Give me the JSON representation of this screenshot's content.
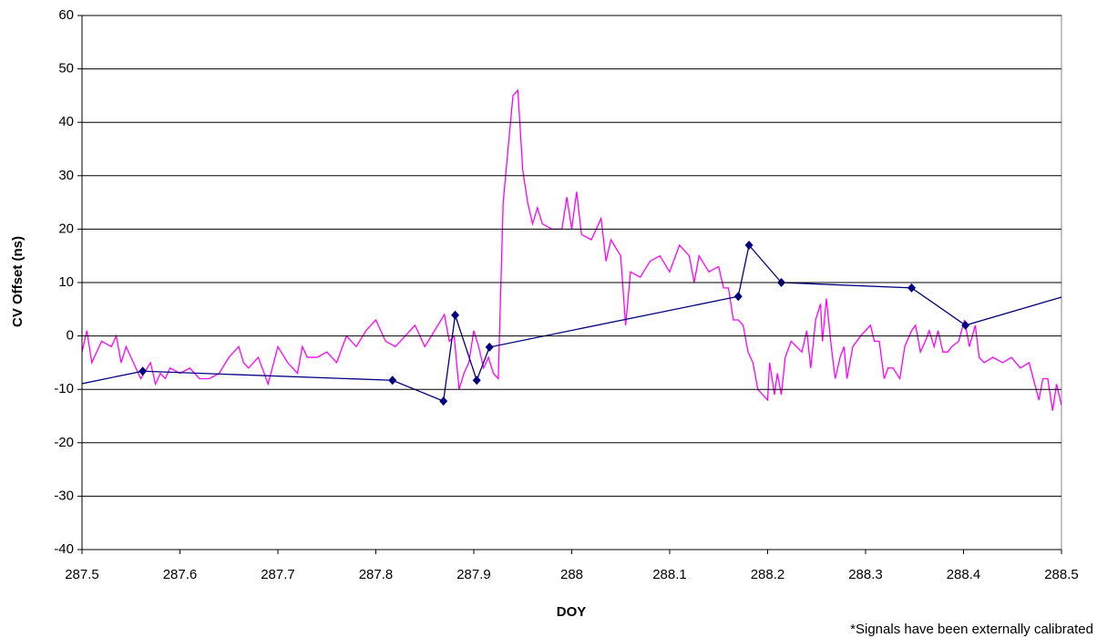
{
  "chart_data": {
    "type": "line",
    "xlabel": "DOY",
    "ylabel": "CV Offset (ns)",
    "annotation": "*Signals have been externally calibrated",
    "xlim": [
      287.5,
      288.5
    ],
    "ylim": [
      -40,
      60
    ],
    "xticks": [
      287.5,
      287.6,
      287.7,
      287.8,
      287.9,
      288,
      288.1,
      288.2,
      288.3,
      288.4,
      288.5
    ],
    "yticks": [
      -40,
      -30,
      -20,
      -10,
      0,
      10,
      20,
      30,
      40,
      50,
      60
    ],
    "grid": true,
    "series": [
      {
        "color": "#ff00ff",
        "x": [
          287.5,
          287.505,
          287.51,
          287.52,
          287.53,
          287.535,
          287.54,
          287.545,
          287.55,
          287.56,
          287.57,
          287.575,
          287.58,
          287.585,
          287.59,
          287.6,
          287.61,
          287.62,
          287.63,
          287.64,
          287.65,
          287.66,
          287.665,
          287.67,
          287.68,
          287.69,
          287.7,
          287.71,
          287.72,
          287.725,
          287.73,
          287.74,
          287.75,
          287.76,
          287.77,
          287.78,
          287.79,
          287.8,
          287.81,
          287.82,
          287.83,
          287.84,
          287.85,
          287.86,
          287.87,
          287.875,
          287.88,
          287.885,
          287.89,
          287.895,
          287.9,
          287.905,
          287.91,
          287.915,
          287.92,
          287.925,
          287.93,
          287.94,
          287.945,
          287.95,
          287.955,
          287.96,
          287.965,
          287.97,
          287.98,
          287.99,
          287.995,
          288.0,
          288.005,
          288.01,
          288.02,
          288.03,
          288.035,
          288.04,
          288.05,
          288.055,
          288.06,
          288.07,
          288.08,
          288.09,
          288.1,
          288.11,
          288.12,
          288.125,
          288.13,
          288.14,
          288.15,
          288.155,
          288.16,
          288.165,
          288.17,
          288.175,
          288.18,
          288.185,
          288.19,
          288.2,
          288.202,
          288.207,
          288.21,
          288.214,
          288.218,
          288.224,
          288.235,
          288.24,
          288.244,
          288.249,
          288.254,
          288.256,
          288.26,
          288.265,
          288.269,
          288.274,
          288.278,
          288.281,
          288.287,
          288.295,
          288.305,
          288.309,
          288.314,
          288.319,
          288.323,
          288.328,
          288.335,
          288.34,
          288.347,
          288.351,
          288.356,
          288.361,
          288.365,
          288.37,
          288.374,
          288.379,
          288.384,
          288.388,
          288.395,
          288.401,
          288.406,
          288.412,
          288.416,
          288.421,
          288.43,
          288.44,
          288.449,
          288.458,
          288.467,
          288.477,
          288.481,
          288.486,
          288.491,
          288.495,
          288.5
        ],
        "values": [
          -3,
          1,
          -5,
          -1,
          -2,
          0,
          -5,
          -2,
          -4,
          -8,
          -5,
          -9,
          -7,
          -8,
          -6,
          -7,
          -6,
          -8,
          -8,
          -7,
          -4,
          -2,
          -5,
          -6,
          -4,
          -9,
          -2,
          -5,
          -7,
          -2,
          -4,
          -4,
          -3,
          -5,
          0,
          -2,
          1,
          3,
          -1,
          -2,
          0,
          2,
          -2,
          1,
          4,
          -1,
          0,
          -10,
          -7,
          -5,
          1,
          -2,
          -6,
          -4,
          -7,
          -8,
          25,
          45,
          46,
          31,
          25,
          21,
          24,
          21,
          20,
          20,
          26,
          20,
          27,
          19,
          18,
          22,
          14,
          18,
          15,
          2,
          12,
          11,
          14,
          15,
          12,
          17,
          15,
          10,
          15,
          12,
          13,
          9,
          9,
          3,
          3,
          2,
          -3,
          -5,
          -10,
          -12,
          -5,
          -11,
          -7,
          -11,
          -4,
          -1,
          -3,
          1,
          -6,
          3,
          6,
          -1,
          7,
          -2,
          -8,
          -4,
          -2,
          -8,
          -2,
          0,
          2,
          -1,
          -1,
          -8,
          -6,
          -6,
          -8,
          -2,
          1,
          2,
          -3,
          -1,
          1,
          -2,
          1,
          -3,
          -3,
          -2,
          -1,
          3,
          -2,
          2,
          -4,
          -5,
          -4,
          -5,
          -4,
          -6,
          -5,
          -12,
          -8,
          -8,
          -14,
          -9,
          -13
        ]
      },
      {
        "color": "#000080",
        "marker": "diamond",
        "x": [
          287.49,
          287.562,
          287.817,
          287.869,
          287.881,
          287.903,
          287.916,
          288.17,
          288.181,
          288.214,
          288.347,
          288.402,
          288.51
        ],
        "values": [
          -9.3,
          -6.6,
          -8.3,
          -12.2,
          3.9,
          -8.3,
          -2.1,
          7.4,
          17,
          10,
          9,
          2,
          7.8
        ]
      }
    ]
  }
}
